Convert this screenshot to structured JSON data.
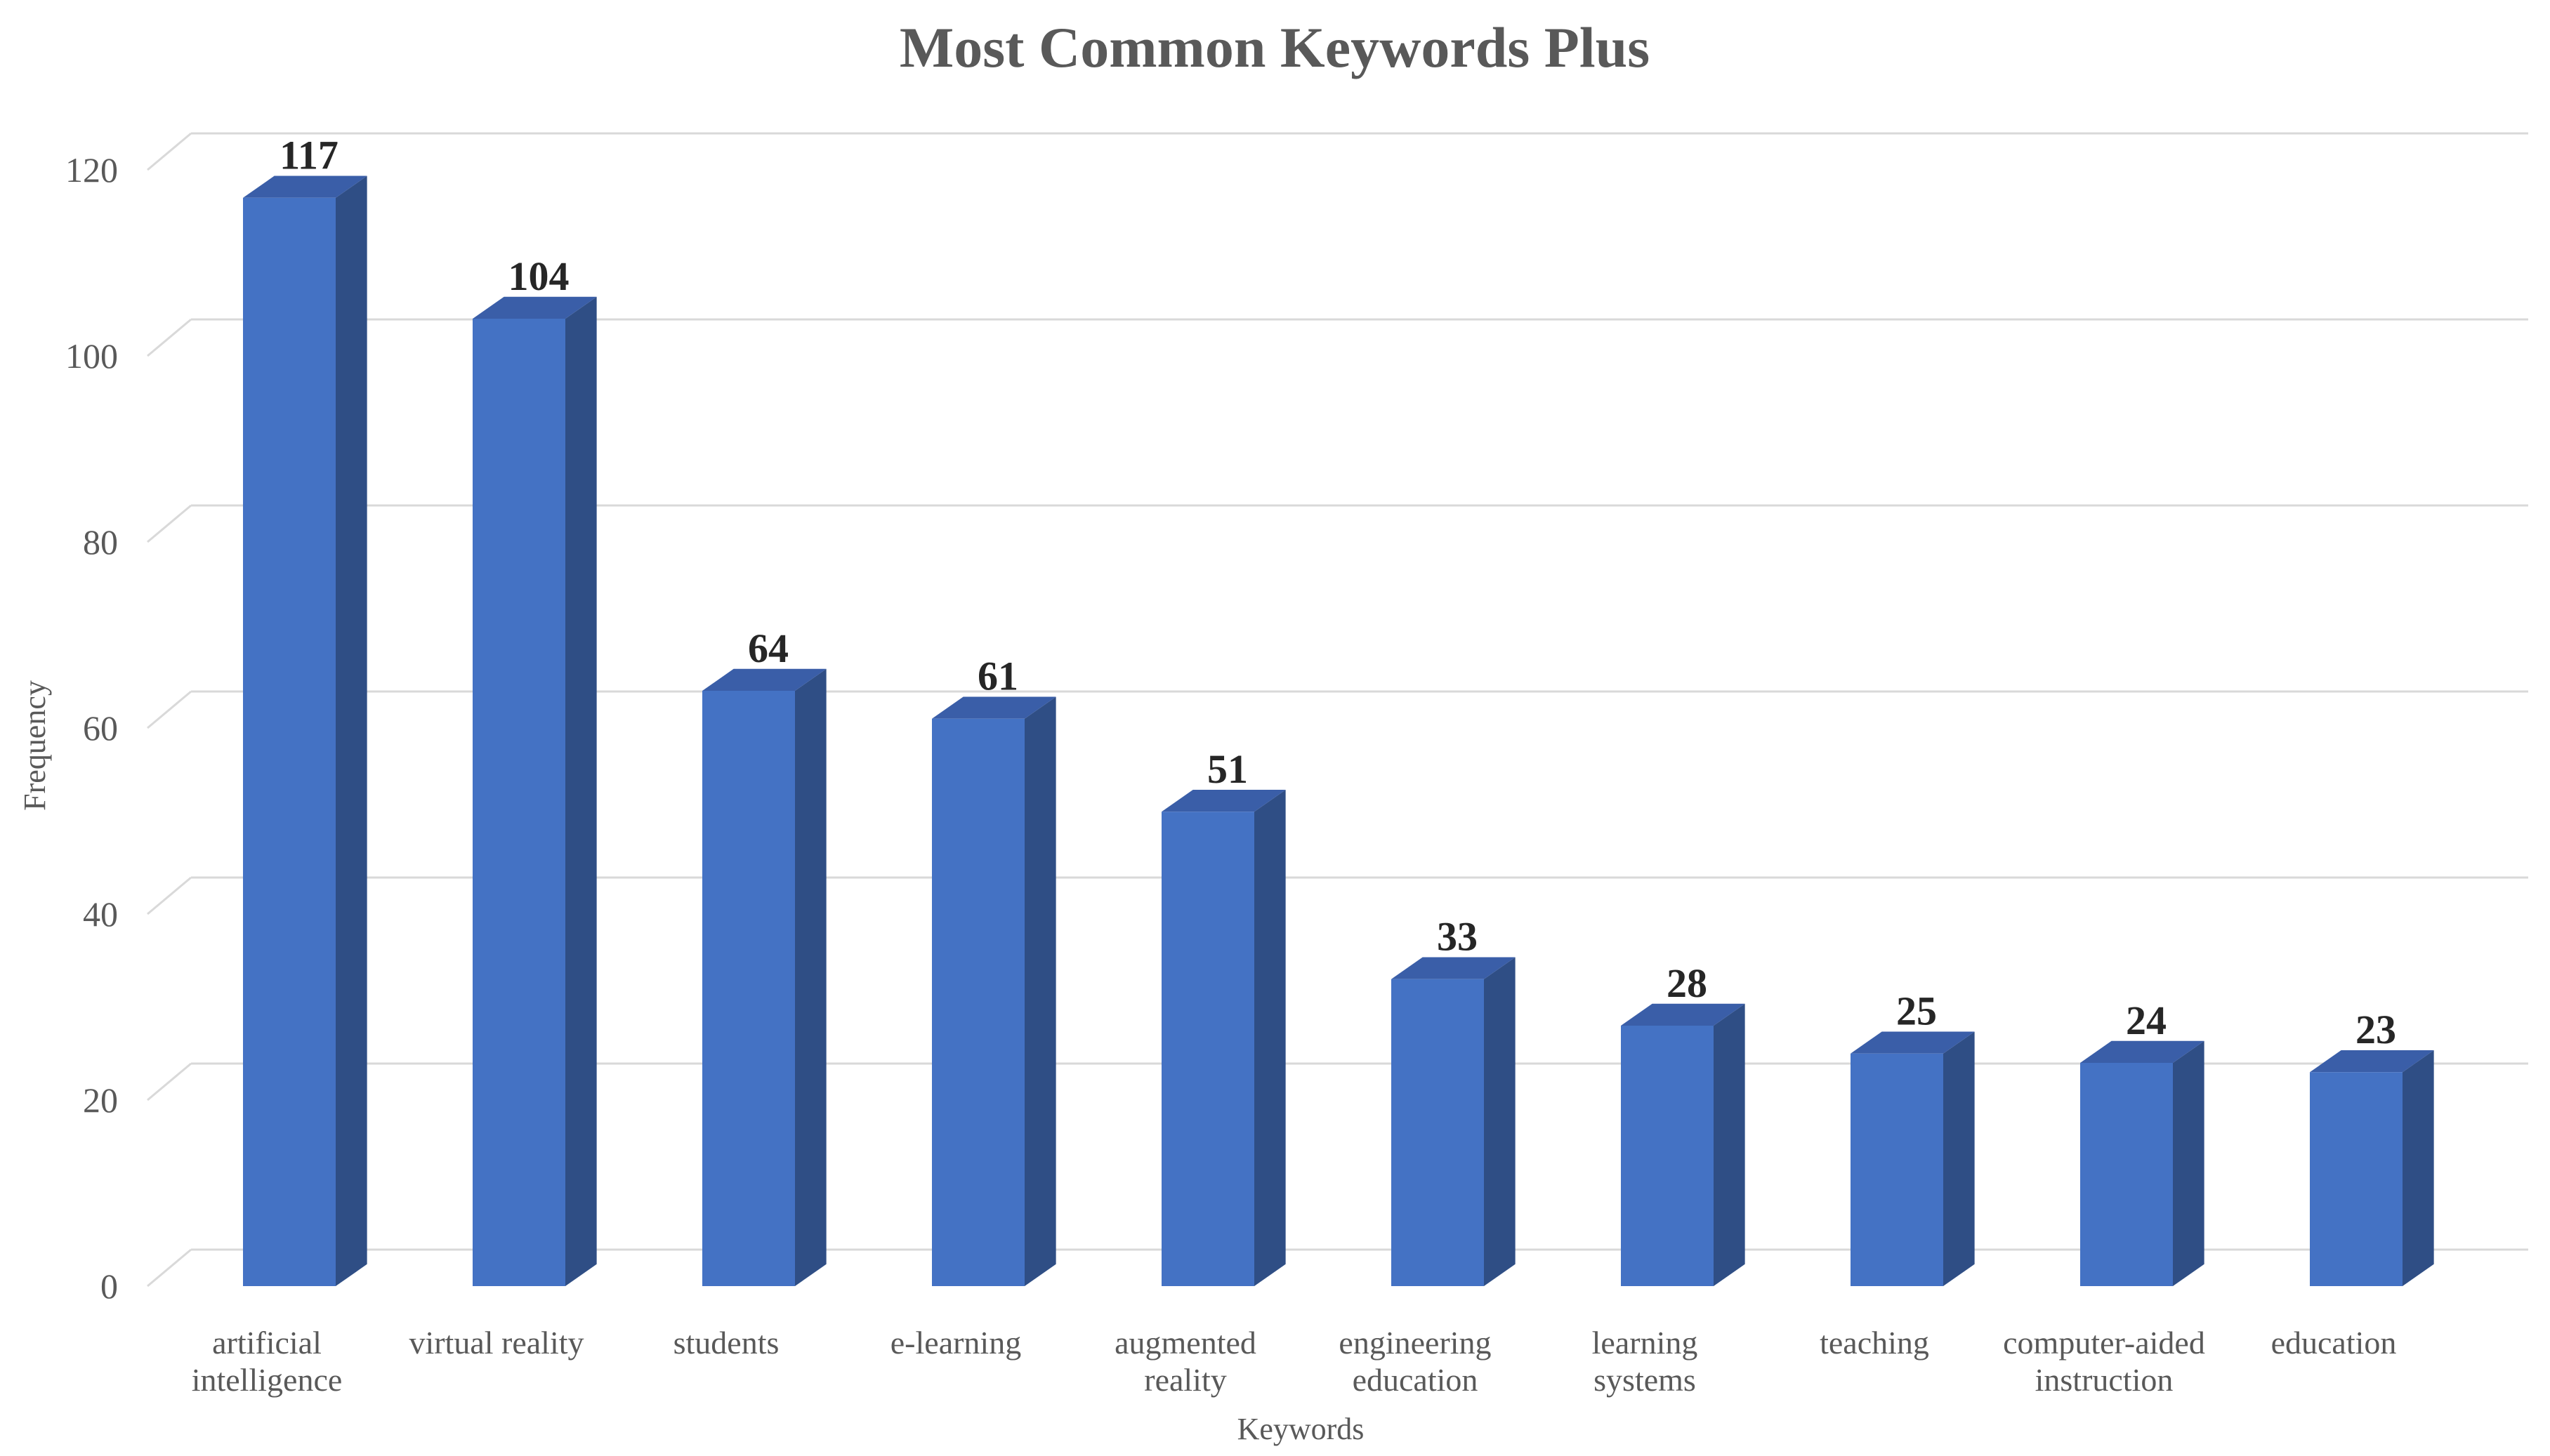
{
  "chart_data": {
    "type": "bar",
    "style": "3d-column",
    "title": "Most Common Keywords Plus",
    "xlabel": "Keywords",
    "ylabel": "Frequency",
    "categories": [
      [
        "artificial",
        "intelligence"
      ],
      [
        "virtual reality"
      ],
      [
        "students"
      ],
      [
        "e-learning"
      ],
      [
        "augmented",
        "reality"
      ],
      [
        "engineering",
        "education"
      ],
      [
        "learning",
        "systems"
      ],
      [
        "teaching"
      ],
      [
        "computer-aided",
        "instruction"
      ],
      [
        "education"
      ]
    ],
    "values": [
      117,
      104,
      64,
      61,
      51,
      33,
      28,
      25,
      24,
      23
    ],
    "data_labels": [
      "117",
      "104",
      "64",
      "61",
      "51",
      "33",
      "28",
      "25",
      "24",
      "23"
    ],
    "ylim": [
      0,
      120
    ],
    "yticks": [
      0,
      20,
      40,
      60,
      80,
      100,
      120
    ],
    "grid": true,
    "legend": "none",
    "colors": {
      "bar_front": "#4472c4",
      "bar_side": "#2f4e85",
      "bar_top": "#3a5ea8",
      "gridline": "#d9d9d9",
      "text": "#595959",
      "data_label": "#262626"
    }
  }
}
